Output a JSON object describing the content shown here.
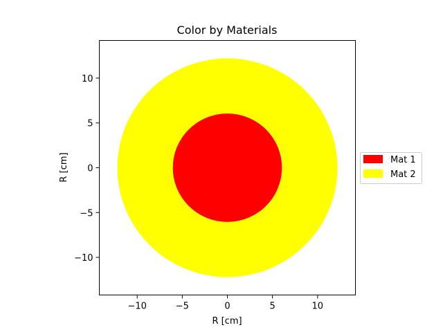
{
  "chart_data": {
    "type": "other",
    "title": "Color by Materials",
    "xlabel": "R [cm]",
    "ylabel": "R [cm]",
    "xlim": [
      -14.2,
      14.2
    ],
    "ylim": [
      -14.2,
      14.2
    ],
    "xticks": [
      -10,
      -5,
      0,
      5,
      10
    ],
    "yticks": [
      -10,
      -5,
      0,
      5,
      10
    ],
    "xtick_labels": [
      "−10",
      "−5",
      "0",
      "5",
      "10"
    ],
    "ytick_labels": [
      "−10",
      "−5",
      "0",
      "5",
      "10"
    ],
    "grid": false,
    "legend_placement": "right",
    "regions": [
      {
        "name": "Mat 2",
        "shape": "circle",
        "center": [
          0,
          0
        ],
        "radius": 12.2,
        "color": "#ffff00"
      },
      {
        "name": "Mat 1",
        "shape": "circle",
        "center": [
          0,
          0
        ],
        "radius": 6.05,
        "color": "#ff0000"
      }
    ],
    "legend": [
      {
        "label": "Mat 1",
        "color": "#ff0000"
      },
      {
        "label": "Mat 2",
        "color": "#ffff00"
      }
    ]
  }
}
